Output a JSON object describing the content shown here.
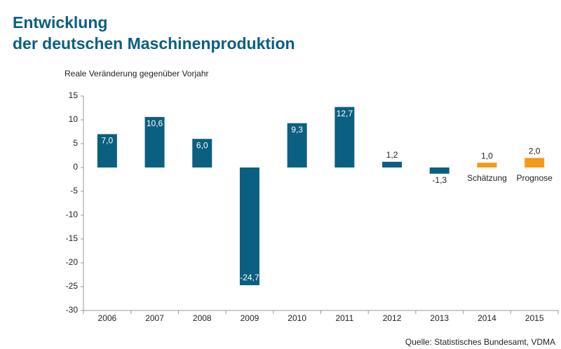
{
  "chart_data": {
    "type": "bar",
    "title_lines": [
      "Entwicklung",
      "der deutschen Maschinenproduktion"
    ],
    "y_label": "Reale Veränderung gegenüber Vorjahr",
    "source": "Quelle: Statistisches Bundesamt, VDMA",
    "categories": [
      "2006",
      "2007",
      "2008",
      "2009",
      "2010",
      "2011",
      "2012",
      "2013",
      "2014",
      "2015"
    ],
    "values": [
      7.0,
      10.6,
      6.0,
      -24.7,
      9.3,
      12.7,
      1.2,
      -1.3,
      1.0,
      2.0
    ],
    "value_labels": [
      "7,0",
      "10,6",
      "6,0",
      "-24,7",
      "9,3",
      "12,7",
      "1,2",
      "-1,3",
      "1,0",
      "2,0"
    ],
    "colors": [
      "#0b5f80",
      "#0b5f80",
      "#0b5f80",
      "#0b5f80",
      "#0b5f80",
      "#0b5f80",
      "#0b5f80",
      "#0b5f80",
      "#f29a1c",
      "#f29a1c"
    ],
    "notes": [
      null,
      null,
      null,
      null,
      null,
      null,
      null,
      null,
      "Schätzung",
      "Prognose"
    ],
    "ylim": [
      -30,
      15
    ],
    "yticks": [
      -30,
      -25,
      -20,
      -15,
      -10,
      -5,
      0,
      5,
      10,
      15
    ],
    "grid": false
  }
}
